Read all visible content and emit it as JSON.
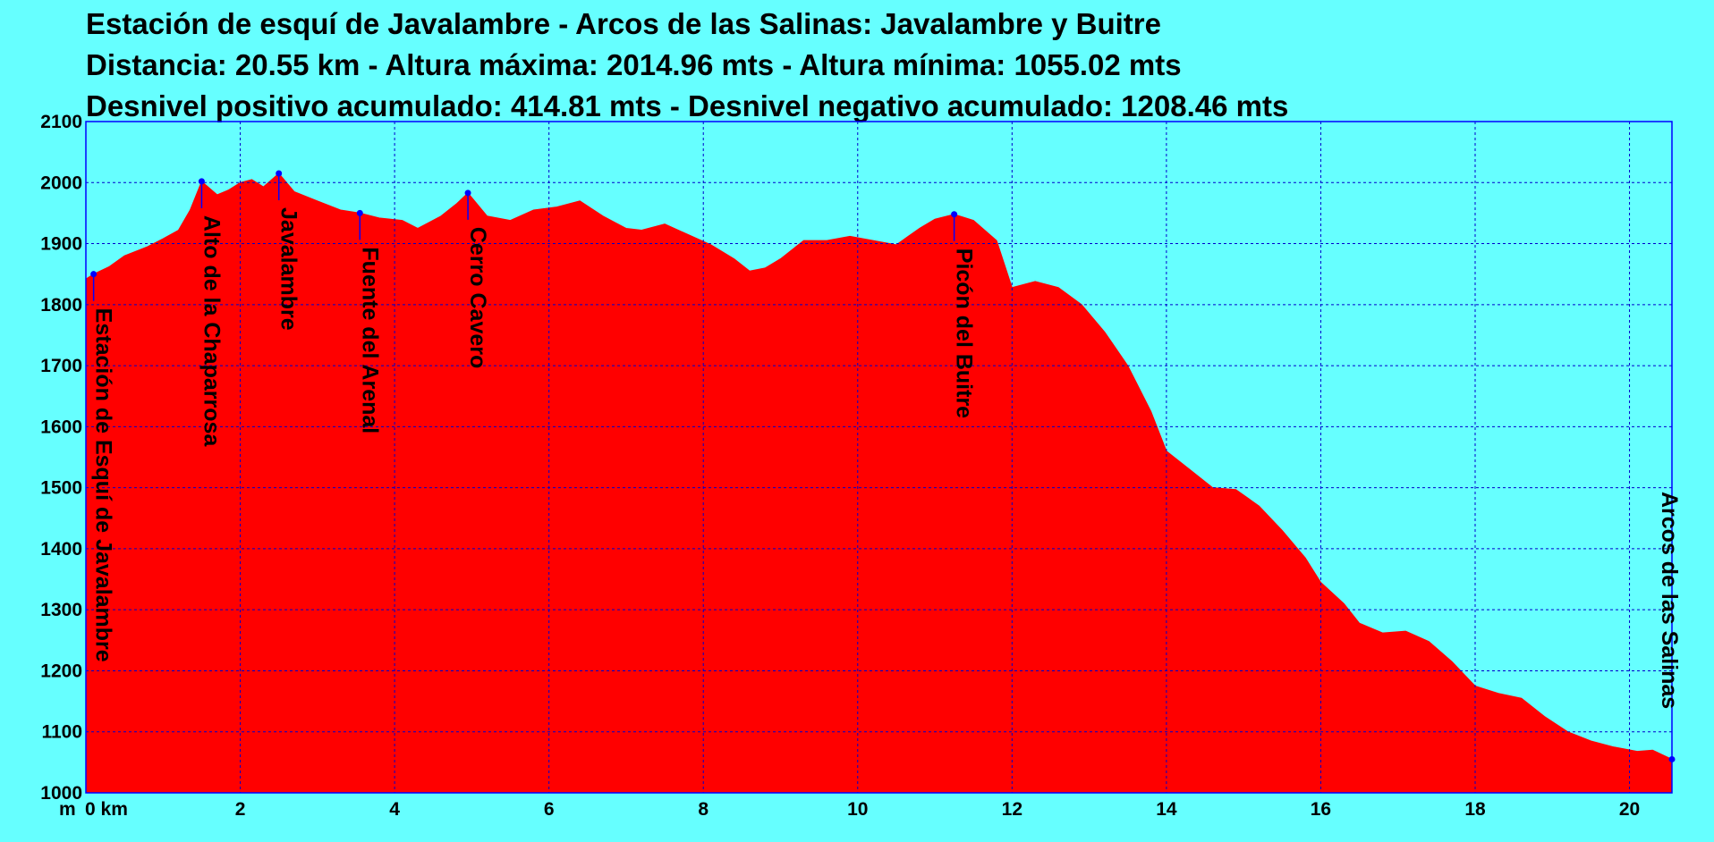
{
  "title": {
    "line1": "Estación de esquí de Javalambre - Arcos de las Salinas: Javalambre y Buitre",
    "line2": "Distancia: 20.55 km - Altura máxima: 2014.96 mts - Altura mínima: 1055.02 mts",
    "line3": "Desnivel positivo acumulado: 414.81 mts - Desnivel negativo acumulado: 1208.46 mts"
  },
  "colors": {
    "background": "#66ffff",
    "fill": "#ff0000",
    "grid": "#0000cc",
    "marker": "#0000ff"
  },
  "chart_data": {
    "type": "area",
    "xlabel": "km",
    "ylabel": "m",
    "xlim": [
      0,
      20.55
    ],
    "ylim": [
      1000,
      2100
    ],
    "x_ticks": [
      0,
      2,
      4,
      6,
      8,
      10,
      12,
      14,
      16,
      18,
      20
    ],
    "x_tick_labels": [
      "0 km",
      "2",
      "4",
      "6",
      "8",
      "10",
      "12",
      "14",
      "16",
      "18",
      "20"
    ],
    "y_ticks": [
      1000,
      1100,
      1200,
      1300,
      1400,
      1500,
      1600,
      1700,
      1800,
      1900,
      2000,
      2100
    ],
    "grid": true,
    "profile": [
      [
        0,
        1842
      ],
      [
        0.1,
        1850
      ],
      [
        0.3,
        1862
      ],
      [
        0.5,
        1880
      ],
      [
        0.8,
        1895
      ],
      [
        1.0,
        1908
      ],
      [
        1.2,
        1922
      ],
      [
        1.35,
        1955
      ],
      [
        1.5,
        2002
      ],
      [
        1.7,
        1980
      ],
      [
        1.85,
        1988
      ],
      [
        2.0,
        2000
      ],
      [
        2.15,
        2005
      ],
      [
        2.3,
        1993
      ],
      [
        2.5,
        2015
      ],
      [
        2.7,
        1985
      ],
      [
        3.0,
        1970
      ],
      [
        3.3,
        1955
      ],
      [
        3.55,
        1950
      ],
      [
        3.8,
        1942
      ],
      [
        4.1,
        1938
      ],
      [
        4.3,
        1925
      ],
      [
        4.6,
        1945
      ],
      [
        4.8,
        1965
      ],
      [
        4.95,
        1983
      ],
      [
        5.2,
        1945
      ],
      [
        5.5,
        1938
      ],
      [
        5.8,
        1955
      ],
      [
        6.1,
        1960
      ],
      [
        6.4,
        1970
      ],
      [
        6.7,
        1945
      ],
      [
        7.0,
        1925
      ],
      [
        7.2,
        1922
      ],
      [
        7.5,
        1932
      ],
      [
        7.8,
        1915
      ],
      [
        8.1,
        1898
      ],
      [
        8.4,
        1875
      ],
      [
        8.6,
        1855
      ],
      [
        8.8,
        1860
      ],
      [
        9.0,
        1875
      ],
      [
        9.3,
        1905
      ],
      [
        9.6,
        1905
      ],
      [
        9.9,
        1912
      ],
      [
        10.2,
        1905
      ],
      [
        10.5,
        1898
      ],
      [
        10.8,
        1925
      ],
      [
        11.0,
        1940
      ],
      [
        11.25,
        1948
      ],
      [
        11.5,
        1938
      ],
      [
        11.8,
        1905
      ],
      [
        12.0,
        1828
      ],
      [
        12.3,
        1838
      ],
      [
        12.6,
        1828
      ],
      [
        12.9,
        1800
      ],
      [
        13.2,
        1755
      ],
      [
        13.5,
        1700
      ],
      [
        13.8,
        1625
      ],
      [
        14.0,
        1560
      ],
      [
        14.3,
        1530
      ],
      [
        14.6,
        1500
      ],
      [
        14.9,
        1497
      ],
      [
        15.2,
        1470
      ],
      [
        15.5,
        1430
      ],
      [
        15.8,
        1385
      ],
      [
        16.0,
        1345
      ],
      [
        16.3,
        1310
      ],
      [
        16.5,
        1278
      ],
      [
        16.8,
        1262
      ],
      [
        17.1,
        1265
      ],
      [
        17.4,
        1248
      ],
      [
        17.7,
        1215
      ],
      [
        18.0,
        1175
      ],
      [
        18.3,
        1163
      ],
      [
        18.6,
        1155
      ],
      [
        18.9,
        1125
      ],
      [
        19.2,
        1100
      ],
      [
        19.5,
        1085
      ],
      [
        19.8,
        1075
      ],
      [
        20.1,
        1068
      ],
      [
        20.3,
        1070
      ],
      [
        20.55,
        1055
      ]
    ],
    "waypoints": [
      {
        "name": "Estación de Esquí de Javalambre",
        "x": 0.1,
        "y": 1850
      },
      {
        "name": "Alto de la Chaparrosa",
        "x": 1.5,
        "y": 2002
      },
      {
        "name": "Javalambre",
        "x": 2.5,
        "y": 2015
      },
      {
        "name": "Fuente del Arenal",
        "x": 3.55,
        "y": 1950
      },
      {
        "name": "Cerro Cavero",
        "x": 4.95,
        "y": 1983
      },
      {
        "name": "Picón del Buitre",
        "x": 11.25,
        "y": 1948
      },
      {
        "name": "Arcos de las Salinas",
        "x": 20.55,
        "y": 1055
      }
    ]
  }
}
